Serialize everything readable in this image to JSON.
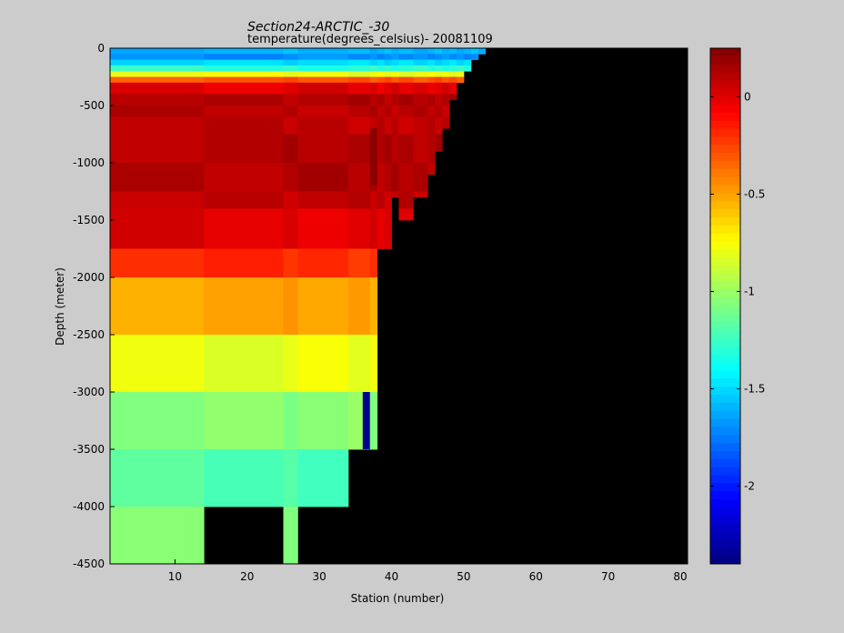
{
  "chart_data": {
    "type": "heatmap",
    "title": "Section24-ARCTIC_-30",
    "subtitle": "temperature(degrees_celsius)- 20081109",
    "xlabel": "Station (number)",
    "ylabel": "Depth (meter)",
    "xlim": [
      1,
      81
    ],
    "ylim": [
      -4500,
      0
    ],
    "x_ticks": [
      10,
      20,
      30,
      40,
      50,
      60,
      70,
      80
    ],
    "y_ticks": [
      0,
      -500,
      -1000,
      -1500,
      -2000,
      -2500,
      -3000,
      -3500,
      -4000,
      -4500
    ],
    "colorbar": {
      "range": [
        -2.4,
        0.25
      ],
      "ticks": [
        0,
        -0.5,
        -1,
        -1.5,
        -2
      ]
    },
    "missing_color": "#000000",
    "depth_bands": [
      {
        "top": 0,
        "bottom": -50,
        "value": -1.6
      },
      {
        "top": -50,
        "bottom": -100,
        "value": -1.7
      },
      {
        "top": -100,
        "bottom": -150,
        "value": -1.5
      },
      {
        "top": -150,
        "bottom": -200,
        "value": -1.3
      },
      {
        "top": -200,
        "bottom": -250,
        "value": -0.8
      },
      {
        "top": -250,
        "bottom": -300,
        "value": -0.3
      },
      {
        "top": -300,
        "bottom": -400,
        "value": 0.0
      },
      {
        "top": -400,
        "bottom": -500,
        "value": 0.12
      },
      {
        "top": -500,
        "bottom": -600,
        "value": 0.1
      },
      {
        "top": -600,
        "bottom": -750,
        "value": 0.08
      },
      {
        "top": -750,
        "bottom": -1000,
        "value": 0.12
      },
      {
        "top": -1000,
        "bottom": -1250,
        "value": 0.12
      },
      {
        "top": -1250,
        "bottom": -1400,
        "value": 0.08
      },
      {
        "top": -1400,
        "bottom": -1750,
        "value": 0.0
      },
      {
        "top": -1750,
        "bottom": -2000,
        "value": -0.2
      },
      {
        "top": -2000,
        "bottom": -2500,
        "value": -0.5
      },
      {
        "top": -2500,
        "bottom": -3000,
        "value": -0.8
      },
      {
        "top": -3000,
        "bottom": -3500,
        "value": -1.05
      },
      {
        "top": -3500,
        "bottom": -4000,
        "value": -1.2
      },
      {
        "top": -4000,
        "bottom": -4500,
        "value": -1.05
      }
    ],
    "bottom_by_station": [
      {
        "from": 1,
        "to": 14,
        "depth": -4500
      },
      {
        "from": 14,
        "to": 25,
        "depth": -4000
      },
      {
        "from": 25,
        "to": 27,
        "depth": -4500
      },
      {
        "from": 27,
        "to": 34,
        "depth": -4000
      },
      {
        "from": 34,
        "to": 37,
        "depth": -3500
      },
      {
        "from": 37,
        "to": 38,
        "depth": -3500
      },
      {
        "from": 38,
        "to": 39,
        "depth": -1750
      },
      {
        "from": 39,
        "to": 40,
        "depth": -1750
      },
      {
        "from": 40,
        "to": 41,
        "depth": -1300
      },
      {
        "from": 41,
        "to": 43,
        "depth": -1500
      },
      {
        "from": 43,
        "to": 45,
        "depth": -1300
      },
      {
        "from": 45,
        "to": 46,
        "depth": -1100
      },
      {
        "from": 46,
        "to": 47,
        "depth": -900
      },
      {
        "from": 47,
        "to": 48,
        "depth": -700
      },
      {
        "from": 48,
        "to": 49,
        "depth": -450
      },
      {
        "from": 49,
        "to": 50,
        "depth": -300
      },
      {
        "from": 50,
        "to": 51,
        "depth": -200
      },
      {
        "from": 51,
        "to": 52,
        "depth": -100
      },
      {
        "from": 52,
        "to": 53,
        "depth": -50
      }
    ],
    "anomalies": [
      {
        "station_from": 36,
        "station_to": 37,
        "top": -3000,
        "bottom": -3500,
        "value": -2.35
      },
      {
        "station_from": 37,
        "station_to": 38,
        "top": -700,
        "bottom": -1200,
        "value": 0.22
      }
    ]
  }
}
